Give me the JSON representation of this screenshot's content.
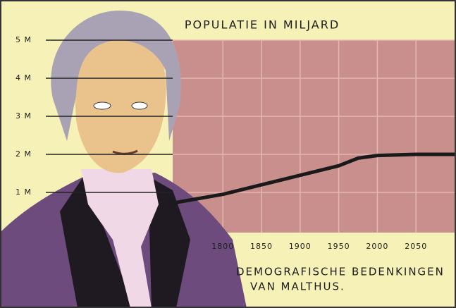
{
  "chart_data": {
    "type": "line",
    "title": "POPULATIE IN MILJARD",
    "annotations": [
      "DEMOGRAFISCHE BEDENKINGEN",
      "VAN MALTHUS."
    ],
    "x": [
      1735,
      1800,
      1850,
      1900,
      1950,
      1975,
      2000,
      2050,
      2100
    ],
    "values": [
      0.72,
      0.95,
      1.2,
      1.45,
      1.7,
      1.9,
      1.97,
      2.0,
      2.0
    ],
    "color": "#1a1a1a",
    "xlim": [
      1735,
      2100
    ],
    "xticks": [
      1800,
      1850,
      1900,
      1950,
      2000,
      2050
    ],
    "ylim": [
      0,
      5
    ],
    "yticks": [
      {
        "value": 1,
        "label": "1 M"
      },
      {
        "value": 2,
        "label": "2 M"
      },
      {
        "value": 3,
        "label": "3 M"
      },
      {
        "value": 4,
        "label": "4 M"
      },
      {
        "value": 5,
        "label": "5 M"
      }
    ],
    "grid": true
  }
}
